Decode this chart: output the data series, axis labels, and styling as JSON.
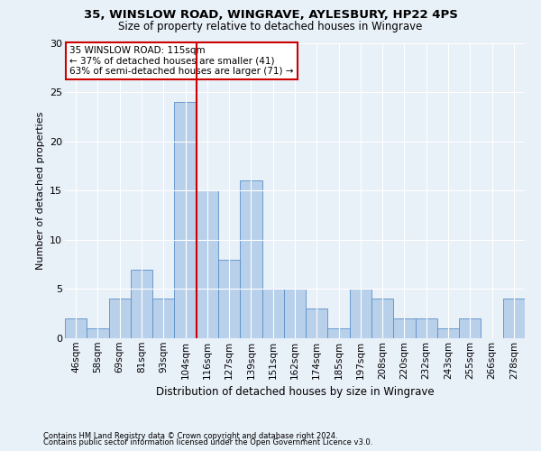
{
  "title1": "35, WINSLOW ROAD, WINGRAVE, AYLESBURY, HP22 4PS",
  "title2": "Size of property relative to detached houses in Wingrave",
  "xlabel": "Distribution of detached houses by size in Wingrave",
  "ylabel": "Number of detached properties",
  "categories": [
    "46sqm",
    "58sqm",
    "69sqm",
    "81sqm",
    "93sqm",
    "104sqm",
    "116sqm",
    "127sqm",
    "139sqm",
    "151sqm",
    "162sqm",
    "174sqm",
    "185sqm",
    "197sqm",
    "208sqm",
    "220sqm",
    "232sqm",
    "243sqm",
    "255sqm",
    "266sqm",
    "278sqm"
  ],
  "values": [
    2,
    1,
    4,
    7,
    4,
    24,
    15,
    8,
    16,
    5,
    5,
    3,
    1,
    5,
    4,
    2,
    2,
    1,
    2,
    0,
    4
  ],
  "bar_color": "#b8d0ea",
  "bar_edge_color": "#5b8fc9",
  "vline_index": 6,
  "annotation_title": "35 WINSLOW ROAD: 115sqm",
  "annotation_line1": "← 37% of detached houses are smaller (41)",
  "annotation_line2": "63% of semi-detached houses are larger (71) →",
  "ylim": [
    0,
    30
  ],
  "yticks": [
    0,
    5,
    10,
    15,
    20,
    25,
    30
  ],
  "footer1": "Contains HM Land Registry data © Crown copyright and database right 2024.",
  "footer2": "Contains public sector information licensed under the Open Government Licence v3.0.",
  "bg_color": "#e8f0f8",
  "grid_color": "#ffffff",
  "vline_color": "#cc0000"
}
